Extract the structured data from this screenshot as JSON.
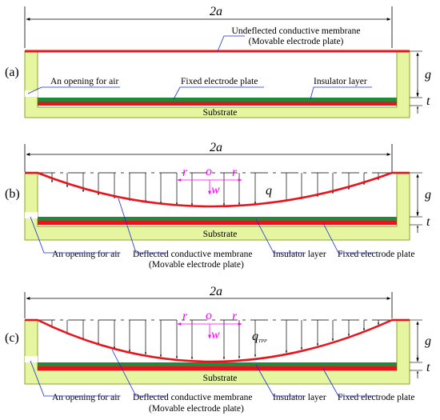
{
  "colors": {
    "substrate_fill": "#e6f5a0",
    "substrate_stroke": "#8aa62a",
    "electrode_red": "#e8141c",
    "insulator_green": "#1f8a3c",
    "leader_blue": "#1a2ad6",
    "axis_magenta": "#ff00ff"
  },
  "panel_a": {
    "tag": "(a)",
    "width_label": "2a",
    "membrane_label_1": "Undeflected conductive membrane",
    "membrane_label_2": "(Movable electrode plate)",
    "opening_label": "An opening for air",
    "fixed_plate_label": "Fixed electrode plate",
    "insulator_label": "Insulator layer",
    "substrate_label": "Substrate",
    "gap_label": "g",
    "thickness_label": "t"
  },
  "panel_b": {
    "tag": "(b)",
    "width_label": "2a",
    "r_left": "r",
    "origin": "o",
    "r_right": "r",
    "w_label": "w",
    "load_label": "q",
    "substrate_label": "Substrate",
    "gap_label": "g",
    "thickness_label": "t",
    "opening_label": "An opening for air",
    "membrane_label_1": "Deflected conductive membrane",
    "membrane_label_2": "(Movable electrode plate)",
    "insulator_label": "Insulator layer",
    "fixed_plate_label": "Fixed electrode plate"
  },
  "panel_c": {
    "tag": "(c)",
    "width_label": "2a",
    "r_left": "r",
    "origin": "o",
    "r_right": "r",
    "w_label": "w",
    "load_label": "q",
    "load_subscript": "TPP",
    "substrate_label": "Substrate",
    "gap_label": "g",
    "thickness_label": "t",
    "opening_label": "An opening for air",
    "membrane_label_1": "Deflected conductive membrane",
    "membrane_label_2": "(Movable electrode plate)",
    "insulator_label": "Insulator layer",
    "fixed_plate_label": "Fixed electrode plate"
  }
}
